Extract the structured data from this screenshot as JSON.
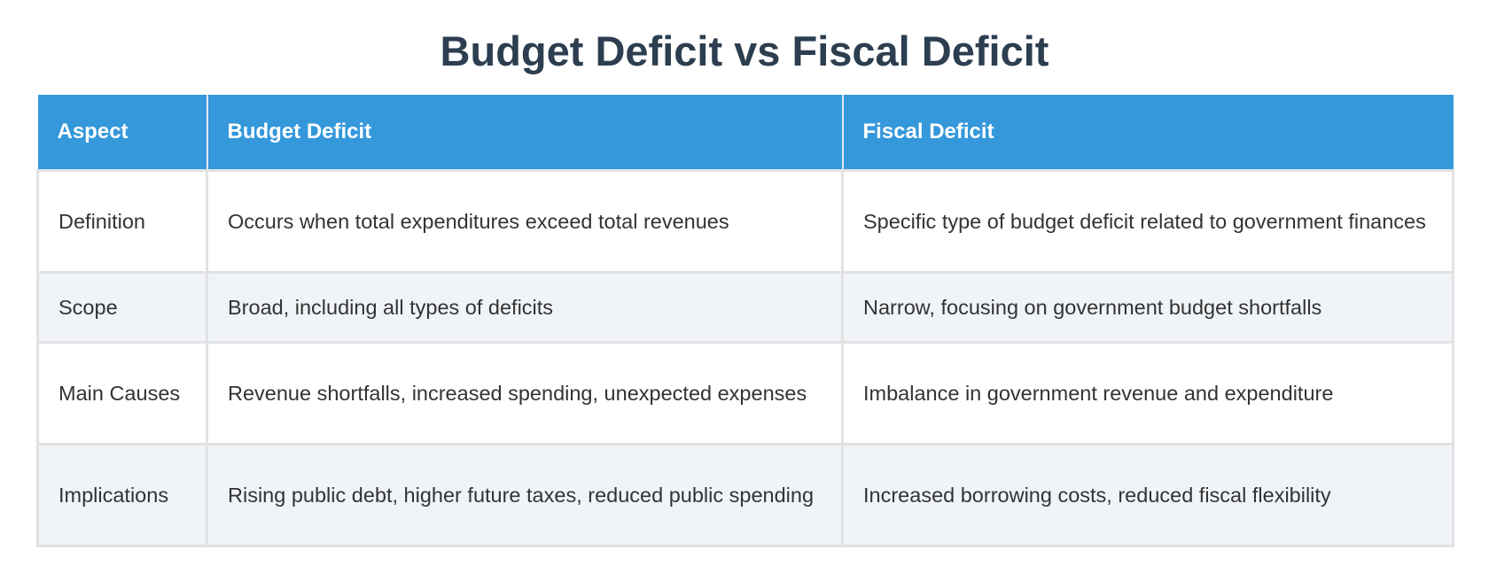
{
  "header": {
    "title": "Budget Deficit vs Fiscal Deficit"
  },
  "table": {
    "columns": [
      "Aspect",
      "Budget Deficit",
      "Fiscal Deficit"
    ],
    "rows": [
      [
        "Definition",
        "Occurs when total expenditures exceed total revenues",
        "Specific type of budget deficit related to government finances"
      ],
      [
        "Scope",
        "Broad, including all types of deficits",
        "Narrow, focusing on government budget shortfalls"
      ],
      [
        "Main Causes",
        "Revenue shortfalls, increased spending, unexpected expenses",
        "Imbalance in government revenue and expenditure"
      ],
      [
        "Implications",
        "Rising public debt, higher future taxes, reduced public spending",
        "Increased borrowing costs, reduced fiscal flexibility"
      ]
    ]
  }
}
